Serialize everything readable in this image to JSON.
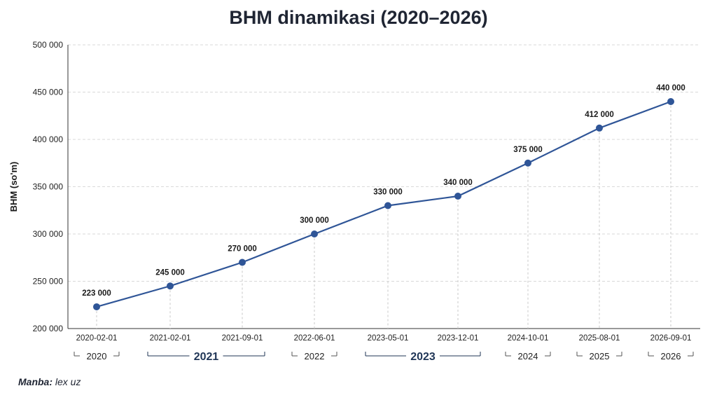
{
  "title": "BHM dinamikasi (2020–2026)",
  "source_label": "Manba:",
  "source_value": "lex uz",
  "colors": {
    "line": "#2f5597",
    "marker": "#2f5597",
    "grid": "#d9d9d9"
  },
  "chart_data": {
    "type": "line",
    "title": "BHM dinamikasi (2020–2026)",
    "ylabel": "BHM (so'm)",
    "xlabel": "",
    "ylim": [
      200000,
      500000
    ],
    "yticks": [
      200000,
      250000,
      300000,
      350000,
      400000,
      450000,
      500000
    ],
    "ytick_labels": [
      "200 000",
      "250 000",
      "300 000",
      "350 000",
      "400 000",
      "450 000",
      "500 000"
    ],
    "x": [
      "2020-02-01",
      "2021-02-01",
      "2021-09-01",
      "2022-06-01",
      "2023-05-01",
      "2023-12-01",
      "2024-10-01",
      "2025-08-01",
      "2026-09-01"
    ],
    "series": [
      {
        "values": [
          223000,
          245000,
          270000,
          300000,
          330000,
          340000,
          375000,
          412000,
          440000
        ],
        "data_labels": [
          "223 000",
          "245 000",
          "270 000",
          "300 000",
          "330 000",
          "340 000",
          "375 000",
          "412 000",
          "440 000"
        ]
      }
    ],
    "year_groups": [
      {
        "label": "2020",
        "from": 0,
        "to": 0,
        "emphasis": false
      },
      {
        "label": "2021",
        "from": 1,
        "to": 2,
        "emphasis": true
      },
      {
        "label": "2022",
        "from": 3,
        "to": 3,
        "emphasis": false
      },
      {
        "label": "2023",
        "from": 4,
        "to": 5,
        "emphasis": true
      },
      {
        "label": "2024",
        "from": 6,
        "to": 6,
        "emphasis": false
      },
      {
        "label": "2025",
        "from": 7,
        "to": 7,
        "emphasis": false
      },
      {
        "label": "2026",
        "from": 8,
        "to": 8,
        "emphasis": false
      }
    ],
    "grid": true,
    "legend": "none"
  }
}
